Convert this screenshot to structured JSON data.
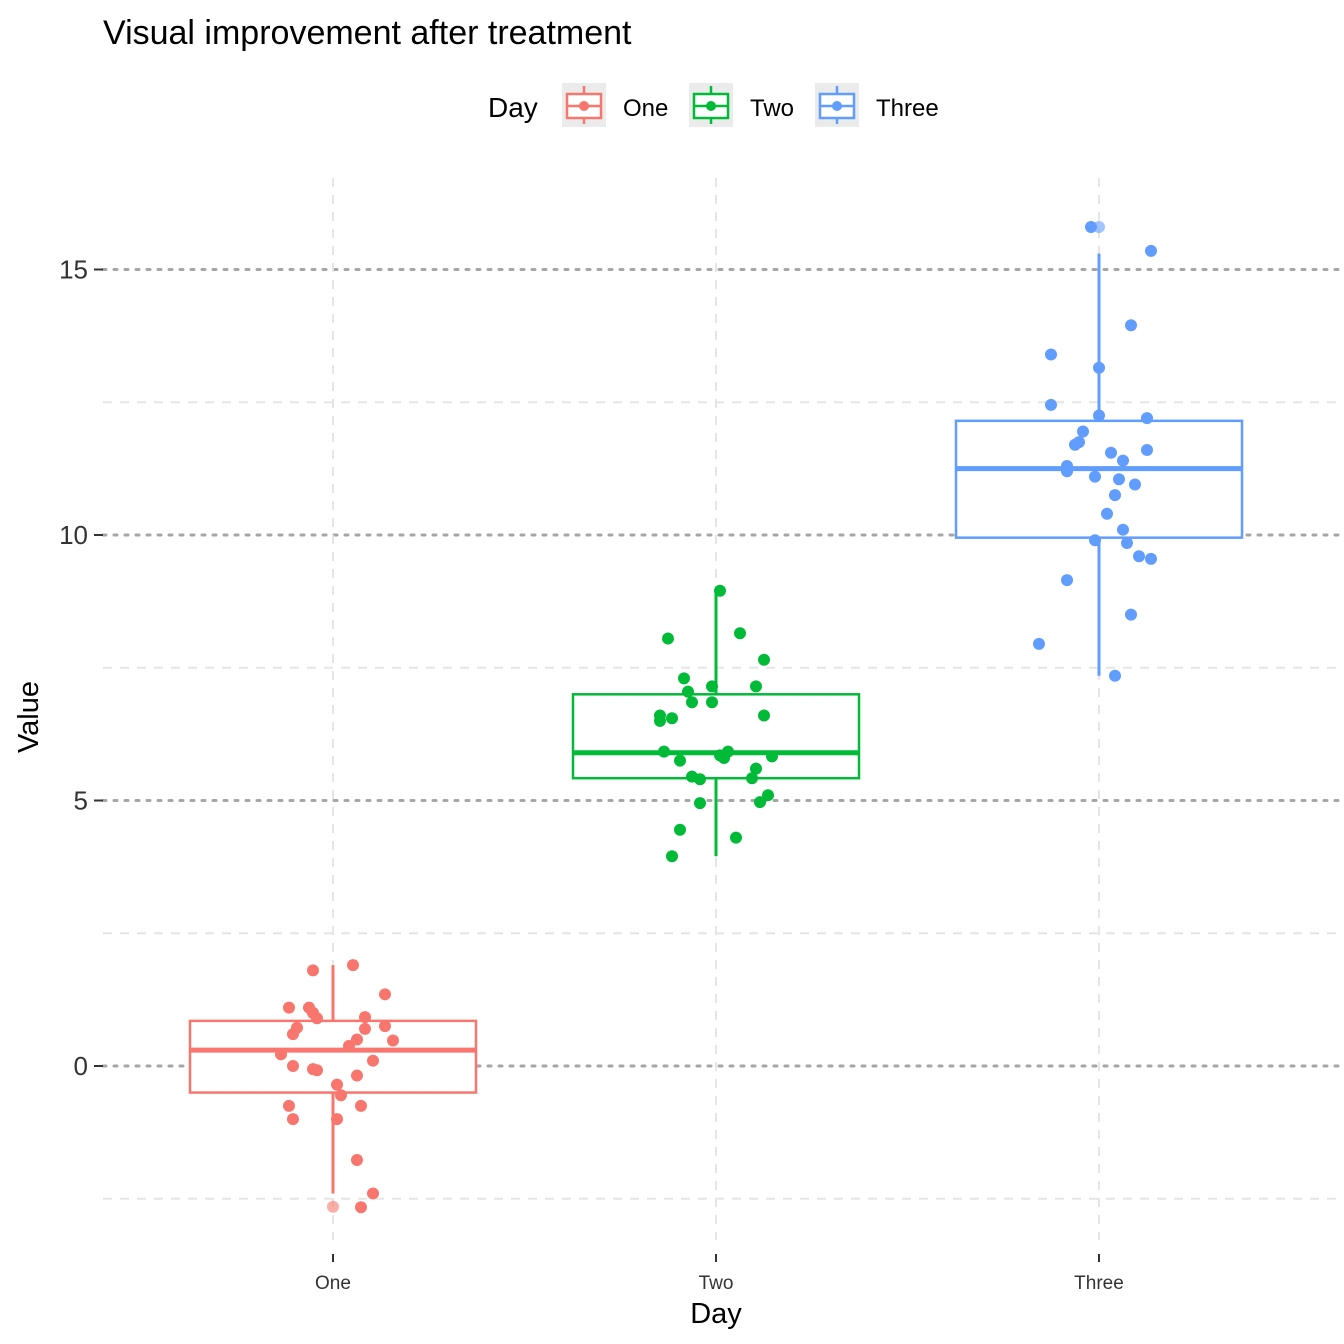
{
  "chart_data": {
    "type": "box",
    "title": "Visual improvement after treatment",
    "xlabel": "Day",
    "ylabel": "Value",
    "ylim": [
      -3.2,
      16.8
    ],
    "yticks": [
      0,
      5,
      10,
      15
    ],
    "grid": true,
    "legend": {
      "title": "Day",
      "position": "top",
      "entries": [
        "One",
        "Two",
        "Three"
      ]
    },
    "categories": [
      "One",
      "Two",
      "Three"
    ],
    "series": [
      {
        "name": "One",
        "color": "#F8766D",
        "box": {
          "q1": -0.5,
          "median": 0.3,
          "q3": 0.85,
          "whisker_low": -2.4,
          "whisker_high": 1.9
        },
        "outliers": [
          -2.65
        ],
        "points": [
          [
            -0.05,
            1.8
          ],
          [
            0.05,
            1.9
          ],
          [
            0.13,
            1.35
          ],
          [
            -0.11,
            1.1
          ],
          [
            -0.06,
            1.1
          ],
          [
            -0.05,
            1.0
          ],
          [
            -0.04,
            0.9
          ],
          [
            0.08,
            0.92
          ],
          [
            -0.09,
            0.72
          ],
          [
            0.08,
            0.7
          ],
          [
            0.13,
            0.75
          ],
          [
            -0.1,
            0.6
          ],
          [
            0.06,
            0.5
          ],
          [
            0.15,
            0.48
          ],
          [
            0.04,
            0.38
          ],
          [
            -0.13,
            0.22
          ],
          [
            0.1,
            0.1
          ],
          [
            -0.1,
            0.0
          ],
          [
            -0.05,
            -0.06
          ],
          [
            -0.04,
            -0.08
          ],
          [
            0.06,
            -0.18
          ],
          [
            0.01,
            -0.35
          ],
          [
            0.02,
            -0.55
          ],
          [
            -0.11,
            -0.75
          ],
          [
            0.07,
            -0.75
          ],
          [
            -0.1,
            -1.0
          ],
          [
            0.01,
            -1.0
          ],
          [
            0.06,
            -1.77
          ],
          [
            0.1,
            -2.4
          ],
          [
            0.07,
            -2.66
          ]
        ]
      },
      {
        "name": "Two",
        "color": "#00BA38",
        "box": {
          "q1": 5.42,
          "median": 5.9,
          "q3": 7.0,
          "whisker_low": 3.95,
          "whisker_high": 8.95
        },
        "outliers": [],
        "points": [
          [
            0.01,
            8.95
          ],
          [
            -0.12,
            8.05
          ],
          [
            0.06,
            8.15
          ],
          [
            0.12,
            7.65
          ],
          [
            -0.08,
            7.3
          ],
          [
            -0.01,
            7.15
          ],
          [
            0.1,
            7.15
          ],
          [
            -0.07,
            7.05
          ],
          [
            -0.06,
            6.85
          ],
          [
            -0.01,
            6.85
          ],
          [
            -0.14,
            6.6
          ],
          [
            -0.11,
            6.55
          ],
          [
            -0.14,
            6.5
          ],
          [
            0.12,
            6.6
          ],
          [
            -0.13,
            5.92
          ],
          [
            0.03,
            5.92
          ],
          [
            0.01,
            5.85
          ],
          [
            0.14,
            5.83
          ],
          [
            0.02,
            5.8
          ],
          [
            -0.09,
            5.75
          ],
          [
            0.1,
            5.6
          ],
          [
            -0.06,
            5.45
          ],
          [
            -0.04,
            5.4
          ],
          [
            0.09,
            5.42
          ],
          [
            0.13,
            5.1
          ],
          [
            -0.04,
            4.95
          ],
          [
            0.11,
            4.97
          ],
          [
            -0.09,
            4.45
          ],
          [
            0.05,
            4.3
          ],
          [
            -0.11,
            3.95
          ]
        ]
      },
      {
        "name": "Three",
        "color": "#619CFF",
        "box": {
          "q1": 9.95,
          "median": 11.25,
          "q3": 12.15,
          "whisker_low": 7.35,
          "whisker_high": 15.3
        },
        "outliers": [
          15.8
        ],
        "points": [
          [
            -0.02,
            15.8
          ],
          [
            0.13,
            15.35
          ],
          [
            0.08,
            13.95
          ],
          [
            -0.12,
            13.4
          ],
          [
            0.0,
            13.15
          ],
          [
            -0.12,
            12.45
          ],
          [
            0.0,
            12.25
          ],
          [
            0.12,
            12.2
          ],
          [
            -0.04,
            11.95
          ],
          [
            -0.05,
            11.75
          ],
          [
            -0.06,
            11.7
          ],
          [
            0.03,
            11.55
          ],
          [
            0.12,
            11.6
          ],
          [
            0.06,
            11.4
          ],
          [
            -0.08,
            11.3
          ],
          [
            -0.08,
            11.2
          ],
          [
            -0.01,
            11.1
          ],
          [
            0.05,
            11.05
          ],
          [
            0.09,
            10.95
          ],
          [
            0.04,
            10.75
          ],
          [
            0.02,
            10.4
          ],
          [
            0.06,
            10.1
          ],
          [
            -0.01,
            9.9
          ],
          [
            0.07,
            9.85
          ],
          [
            0.1,
            9.6
          ],
          [
            0.13,
            9.55
          ],
          [
            -0.08,
            9.15
          ],
          [
            0.08,
            8.5
          ],
          [
            -0.15,
            7.95
          ],
          [
            0.04,
            7.35
          ]
        ]
      }
    ]
  }
}
